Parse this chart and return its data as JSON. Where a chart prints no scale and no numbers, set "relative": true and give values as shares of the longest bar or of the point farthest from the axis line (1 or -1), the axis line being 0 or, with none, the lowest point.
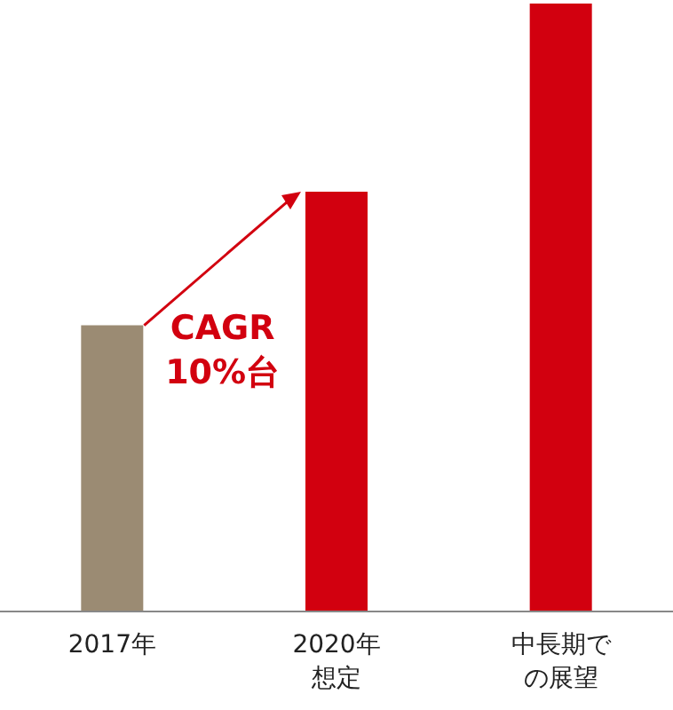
{
  "chart_data": {
    "type": "bar",
    "relative": true,
    "categories": [
      "2017年",
      "2020年想定",
      "中長期での展望"
    ],
    "values": [
      0.47,
      0.69,
      1
    ],
    "colors": [
      "#9b8b73",
      "#d2000f",
      "#d2000f"
    ],
    "annotations": [
      "CAGR\n10%台"
    ]
  }
}
